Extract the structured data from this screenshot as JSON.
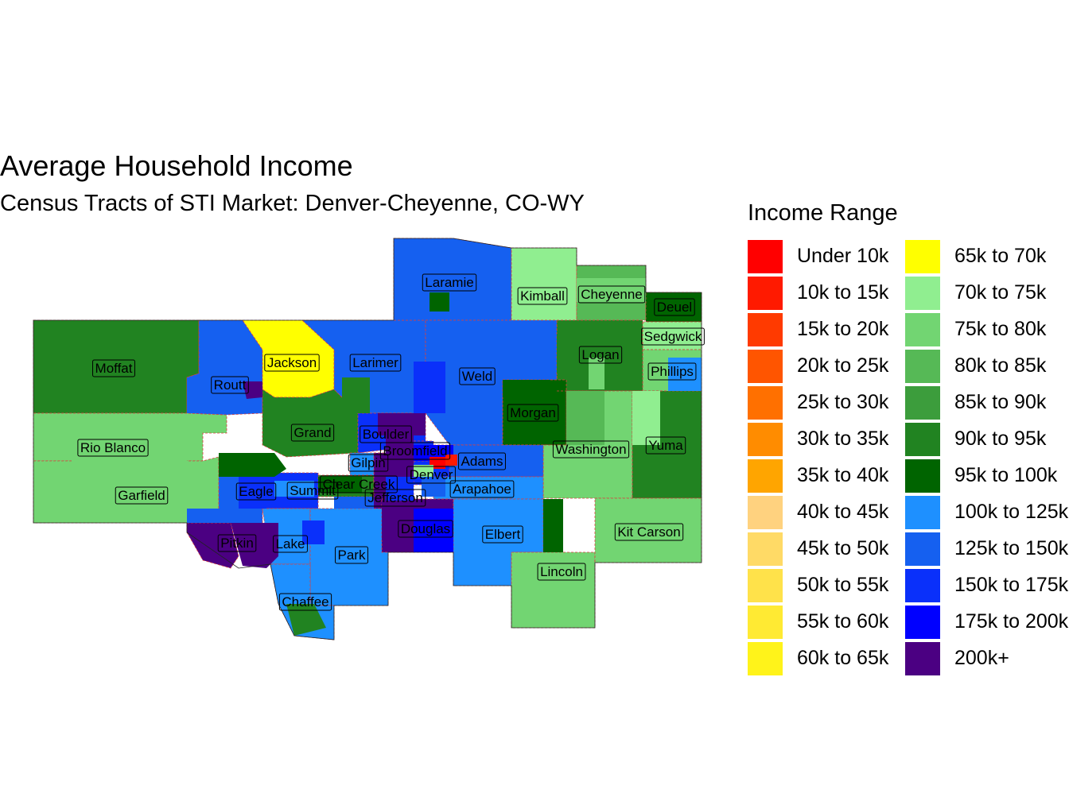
{
  "title": "Average Household Income",
  "subtitle": "Census Tracts of STI Market: Denver-Cheyenne, CO-WY",
  "legend": {
    "title": "Income Range",
    "items": [
      {
        "label": "Under 10k",
        "color": "#FF0000"
      },
      {
        "label": "10k to 15k",
        "color": "#FF1A00"
      },
      {
        "label": "15k to 20k",
        "color": "#FF3A00"
      },
      {
        "label": "20k to 25k",
        "color": "#FF5500"
      },
      {
        "label": "25k to 30k",
        "color": "#FF7000"
      },
      {
        "label": "30k to 35k",
        "color": "#FF8C00"
      },
      {
        "label": "35k to 40k",
        "color": "#FFA500"
      },
      {
        "label": "40k to 45k",
        "color": "#FFD27F"
      },
      {
        "label": "45k to 50k",
        "color": "#FFDA66"
      },
      {
        "label": "50k to 55k",
        "color": "#FFE24A"
      },
      {
        "label": "55k to 60k",
        "color": "#FFEA33"
      },
      {
        "label": "60k to 65k",
        "color": "#FFF31A"
      },
      {
        "label": "65k to 70k",
        "color": "#FFFF00"
      },
      {
        "label": "70k to 75k",
        "color": "#90EE90"
      },
      {
        "label": "75k to 80k",
        "color": "#72D572"
      },
      {
        "label": "80k to 85k",
        "color": "#56B956"
      },
      {
        "label": "85k to 90k",
        "color": "#3C9D3C"
      },
      {
        "label": "90k to 95k",
        "color": "#218321"
      },
      {
        "label": "95k to 100k",
        "color": "#006400"
      },
      {
        "label": "100k to 125k",
        "color": "#1E90FF"
      },
      {
        "label": "125k to 150k",
        "color": "#1560F0"
      },
      {
        "label": "150k to 175k",
        "color": "#0A30FA"
      },
      {
        "label": "175k to 200k",
        "color": "#0000FF"
      },
      {
        "label": "200k+",
        "color": "#4B0082"
      }
    ]
  },
  "counties": [
    {
      "name": "Laramie",
      "bin": 20
    },
    {
      "name": "Kimball",
      "bin": 13
    },
    {
      "name": "Cheyenne",
      "bin": 15
    },
    {
      "name": "Deuel",
      "bin": 18
    },
    {
      "name": "Sedgwick",
      "bin": 13
    },
    {
      "name": "Moffat",
      "bin": 17
    },
    {
      "name": "Routt",
      "bin": 20
    },
    {
      "name": "Jackson",
      "bin": 12
    },
    {
      "name": "Larimer",
      "bin": 20
    },
    {
      "name": "Weld",
      "bin": 20
    },
    {
      "name": "Logan",
      "bin": 17
    },
    {
      "name": "Phillips",
      "bin": 14
    },
    {
      "name": "Morgan",
      "bin": 18
    },
    {
      "name": "Grand",
      "bin": 17
    },
    {
      "name": "Boulder",
      "bin": 21
    },
    {
      "name": "Broomfield",
      "bin": 21
    },
    {
      "name": "Rio Blanco",
      "bin": 14
    },
    {
      "name": "Washington",
      "bin": 14
    },
    {
      "name": "Yuma",
      "bin": 17
    },
    {
      "name": "Gilpin",
      "bin": 19
    },
    {
      "name": "Adams",
      "bin": 20
    },
    {
      "name": "Denver",
      "bin": 21
    },
    {
      "name": "Clear Creek",
      "bin": 17
    },
    {
      "name": "Garfield",
      "bin": 14
    },
    {
      "name": "Eagle",
      "bin": 20
    },
    {
      "name": "Summit",
      "bin": 21
    },
    {
      "name": "Jefferson",
      "bin": 23
    },
    {
      "name": "Arapahoe",
      "bin": 19
    },
    {
      "name": "Douglas",
      "bin": 23
    },
    {
      "name": "Elbert",
      "bin": 19
    },
    {
      "name": "Kit Carson",
      "bin": 14
    },
    {
      "name": "Pitkin",
      "bin": 23
    },
    {
      "name": "Lake",
      "bin": 19
    },
    {
      "name": "Park",
      "bin": 19
    },
    {
      "name": "Lincoln",
      "bin": 14
    },
    {
      "name": "Chaffee",
      "bin": 19
    }
  ]
}
